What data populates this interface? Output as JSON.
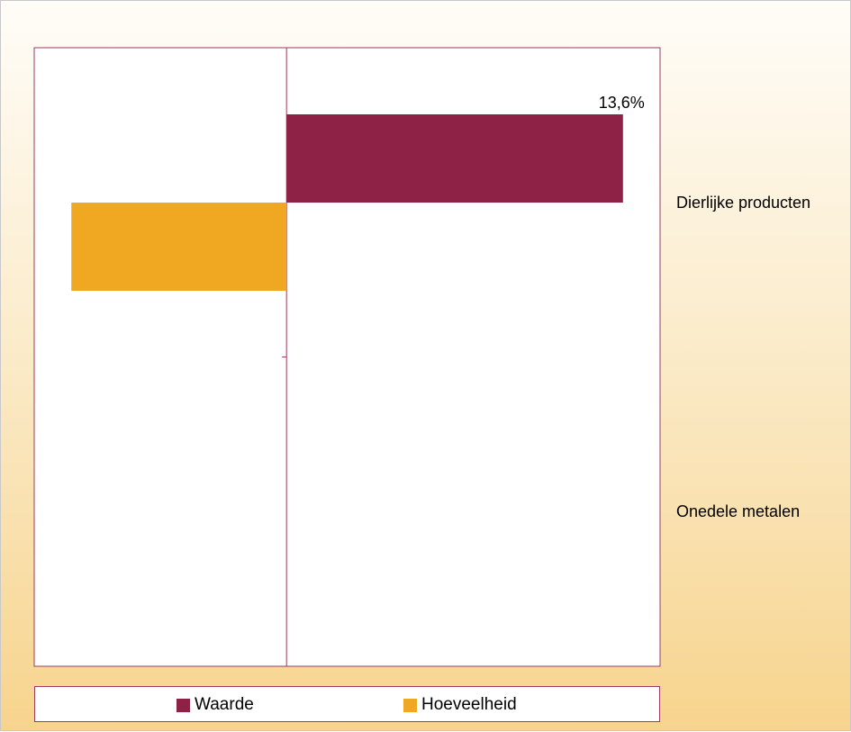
{
  "chart_data": {
    "type": "bar",
    "orientation": "horizontal",
    "categories": [
      "Dierlijke producten",
      "Onedele metalen"
    ],
    "series": [
      {
        "name": "Waarde",
        "values": [
          13.6,
          null
        ],
        "color": "#8e2146"
      },
      {
        "name": "Hoeveelheid",
        "values": [
          -8.7,
          null
        ],
        "color": "#f0a823"
      }
    ],
    "data_labels": [
      {
        "series": "Waarde",
        "category": "Dierlijke producten",
        "text": "13,6%"
      }
    ],
    "xlim": [
      -10.2,
      15.1
    ],
    "grid": false,
    "legend_position": "bottom"
  }
}
